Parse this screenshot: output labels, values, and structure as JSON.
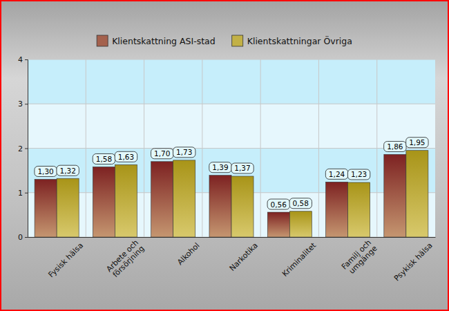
{
  "chart_data": {
    "type": "bar",
    "categories": [
      "Fysisk hälsa",
      "Arbete och\nförsörjning",
      "Alkohol",
      "Narkotika",
      "Kriminalitet",
      "Familj och\numgänge",
      "Psykisk hälsa"
    ],
    "series": [
      {
        "name": "Klientskattning ASI-stad",
        "color": "#7d2222",
        "values": [
          1.3,
          1.58,
          1.7,
          1.39,
          0.56,
          1.24,
          1.86
        ],
        "value_labels": [
          "1,30",
          "1,58",
          "1,70",
          "1,39",
          "0,56",
          "1,24",
          "1,86"
        ]
      },
      {
        "name": "Klientskattningar Övriga",
        "color": "#a89418",
        "values": [
          1.32,
          1.63,
          1.73,
          1.37,
          0.58,
          1.23,
          1.95
        ],
        "value_labels": [
          "1,32",
          "1,63",
          "1,73",
          "1,37",
          "0,58",
          "1,23",
          "1,95"
        ]
      }
    ],
    "ylim": [
      0,
      4
    ],
    "yticks": [
      0,
      1,
      2,
      3,
      4
    ],
    "grid": true,
    "legend": "top",
    "data_labels": true
  }
}
